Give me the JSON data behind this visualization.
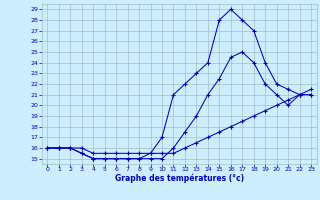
{
  "xlabel": "Graphe des températures (°c)",
  "background_color": "#cceeff",
  "grid_color": "#aabbcc",
  "line_color": "#0000bb",
  "xlim": [
    -0.5,
    23.5
  ],
  "ylim": [
    14.5,
    29.5
  ],
  "xticks": [
    0,
    1,
    2,
    3,
    4,
    5,
    6,
    7,
    8,
    9,
    10,
    11,
    12,
    13,
    14,
    15,
    16,
    17,
    18,
    19,
    20,
    21,
    22,
    23
  ],
  "yticks": [
    15,
    16,
    17,
    18,
    19,
    20,
    21,
    22,
    23,
    24,
    25,
    26,
    27,
    28,
    29
  ],
  "line1_x": [
    0,
    1,
    2,
    3,
    4,
    5,
    6,
    7,
    8,
    9,
    10,
    11,
    12,
    13,
    14,
    15,
    16,
    17,
    18,
    19,
    20,
    21,
    22,
    23
  ],
  "line1_y": [
    16,
    16,
    16,
    15.5,
    15,
    15,
    15,
    15,
    15,
    15.5,
    17,
    21,
    22,
    23,
    24,
    28,
    29,
    28,
    27,
    24,
    22,
    21.5,
    21,
    21
  ],
  "line2_x": [
    0,
    1,
    2,
    3,
    4,
    5,
    6,
    7,
    8,
    9,
    10,
    11,
    12,
    13,
    14,
    15,
    16,
    17,
    18,
    19,
    20,
    21,
    22,
    23
  ],
  "line2_y": [
    16,
    16,
    16,
    15.5,
    15,
    15,
    15,
    15,
    15,
    15,
    15,
    16,
    17.5,
    19,
    21,
    22.5,
    24.5,
    25,
    24,
    22,
    21,
    20,
    21,
    21
  ],
  "line3_x": [
    0,
    1,
    2,
    3,
    4,
    5,
    6,
    7,
    8,
    9,
    10,
    11,
    12,
    13,
    14,
    15,
    16,
    17,
    18,
    19,
    20,
    21,
    22,
    23
  ],
  "line3_y": [
    16,
    16,
    16,
    16,
    15.5,
    15.5,
    15.5,
    15.5,
    15.5,
    15.5,
    15.5,
    15.5,
    16,
    16.5,
    17,
    17.5,
    18,
    18.5,
    19,
    19.5,
    20,
    20.5,
    21,
    21.5
  ]
}
